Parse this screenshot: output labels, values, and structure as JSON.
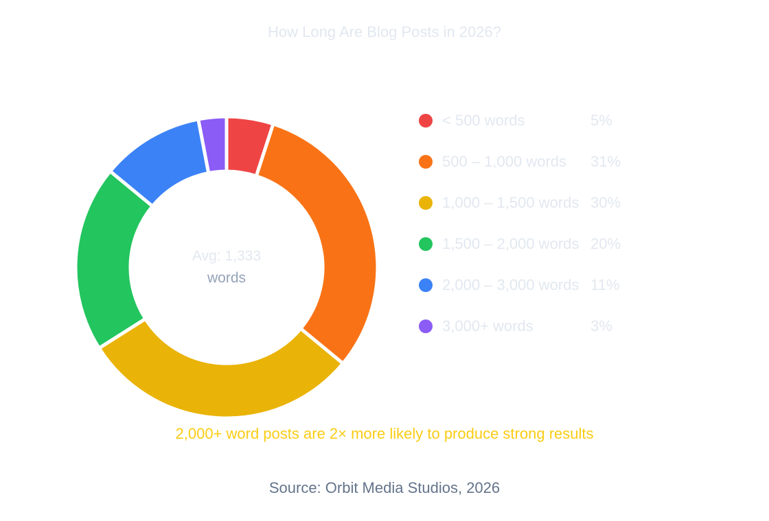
{
  "chart_data": {
    "type": "pie",
    "subtype": "donut",
    "title": "How Long Are Blog Posts in 2026?",
    "categories": [
      "< 500 words",
      "500 – 1,000 words",
      "1,000 – 1,500 words",
      "1,500 – 2,000 words",
      "2,000 – 3,000 words",
      "3,000+ words"
    ],
    "values": [
      5,
      31,
      30,
      20,
      11,
      3
    ],
    "value_labels": [
      "5%",
      "31%",
      "30%",
      "20%",
      "11%",
      "3%"
    ],
    "colors": [
      "#ef4444",
      "#f97316",
      "#eab308",
      "#22c55e",
      "#3b82f6",
      "#8b5cf6"
    ],
    "center_label": {
      "value": "Avg: 1,333",
      "unit": "words"
    },
    "legend_position": "right",
    "annotation": "2,000+ word posts are 2× more likely to produce strong results",
    "source": "Source: Orbit Media Studios, 2026"
  },
  "legend": [
    {
      "label": "< 500 words",
      "value": "5%",
      "color": "#ef4444"
    },
    {
      "label": "500 – 1,000 words",
      "value": "31%",
      "color": "#f97316"
    },
    {
      "label": "1,000 – 1,500 words",
      "value": "30%",
      "color": "#eab308"
    },
    {
      "label": "1,500 – 2,000 words",
      "value": "20%",
      "color": "#22c55e"
    },
    {
      "label": "2,000 – 3,000 words",
      "value": "11%",
      "color": "#3b82f6"
    },
    {
      "label": "3,000+ words",
      "value": "3%",
      "color": "#8b5cf6"
    }
  ]
}
